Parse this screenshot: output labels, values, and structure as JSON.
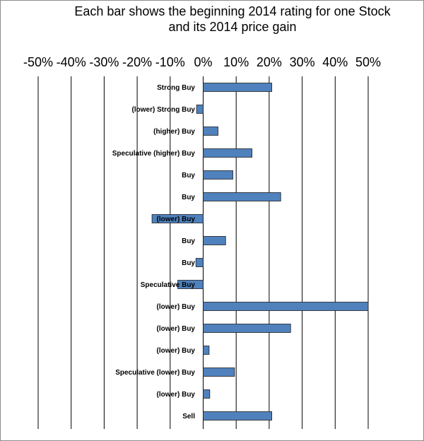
{
  "chart_data": {
    "type": "bar",
    "orientation": "horizontal",
    "title_line1": "Each bar shows the beginning 2014 rating for one Stock",
    "title_line2": "and its 2014 price gain",
    "x_ticks": [
      "-50%",
      "-40%",
      "-30%",
      "-20%",
      "-10%",
      "0%",
      "10%",
      "20%",
      "30%",
      "40%",
      "50%"
    ],
    "xlim": [
      -50,
      50
    ],
    "grid": "vertical",
    "bar_color": "#4f81bd",
    "categories": [
      "Strong Buy",
      "(lower) Strong Buy",
      "(higher) Buy",
      "Speculative (higher) Buy",
      "Buy",
      "Buy",
      "(lower) Buy",
      "Buy",
      "Buy",
      "Speculative Buy",
      "(lower) Buy",
      "(lower) Buy",
      "(lower) Buy",
      "Speculative (lower) Buy",
      "(lower) Buy",
      "Sell"
    ],
    "values": [
      20.8,
      -2,
      4.5,
      14.8,
      9,
      23.5,
      -15.5,
      6.8,
      -2.2,
      -7.7,
      50,
      26.5,
      1.8,
      9.5,
      2,
      20.8
    ]
  }
}
